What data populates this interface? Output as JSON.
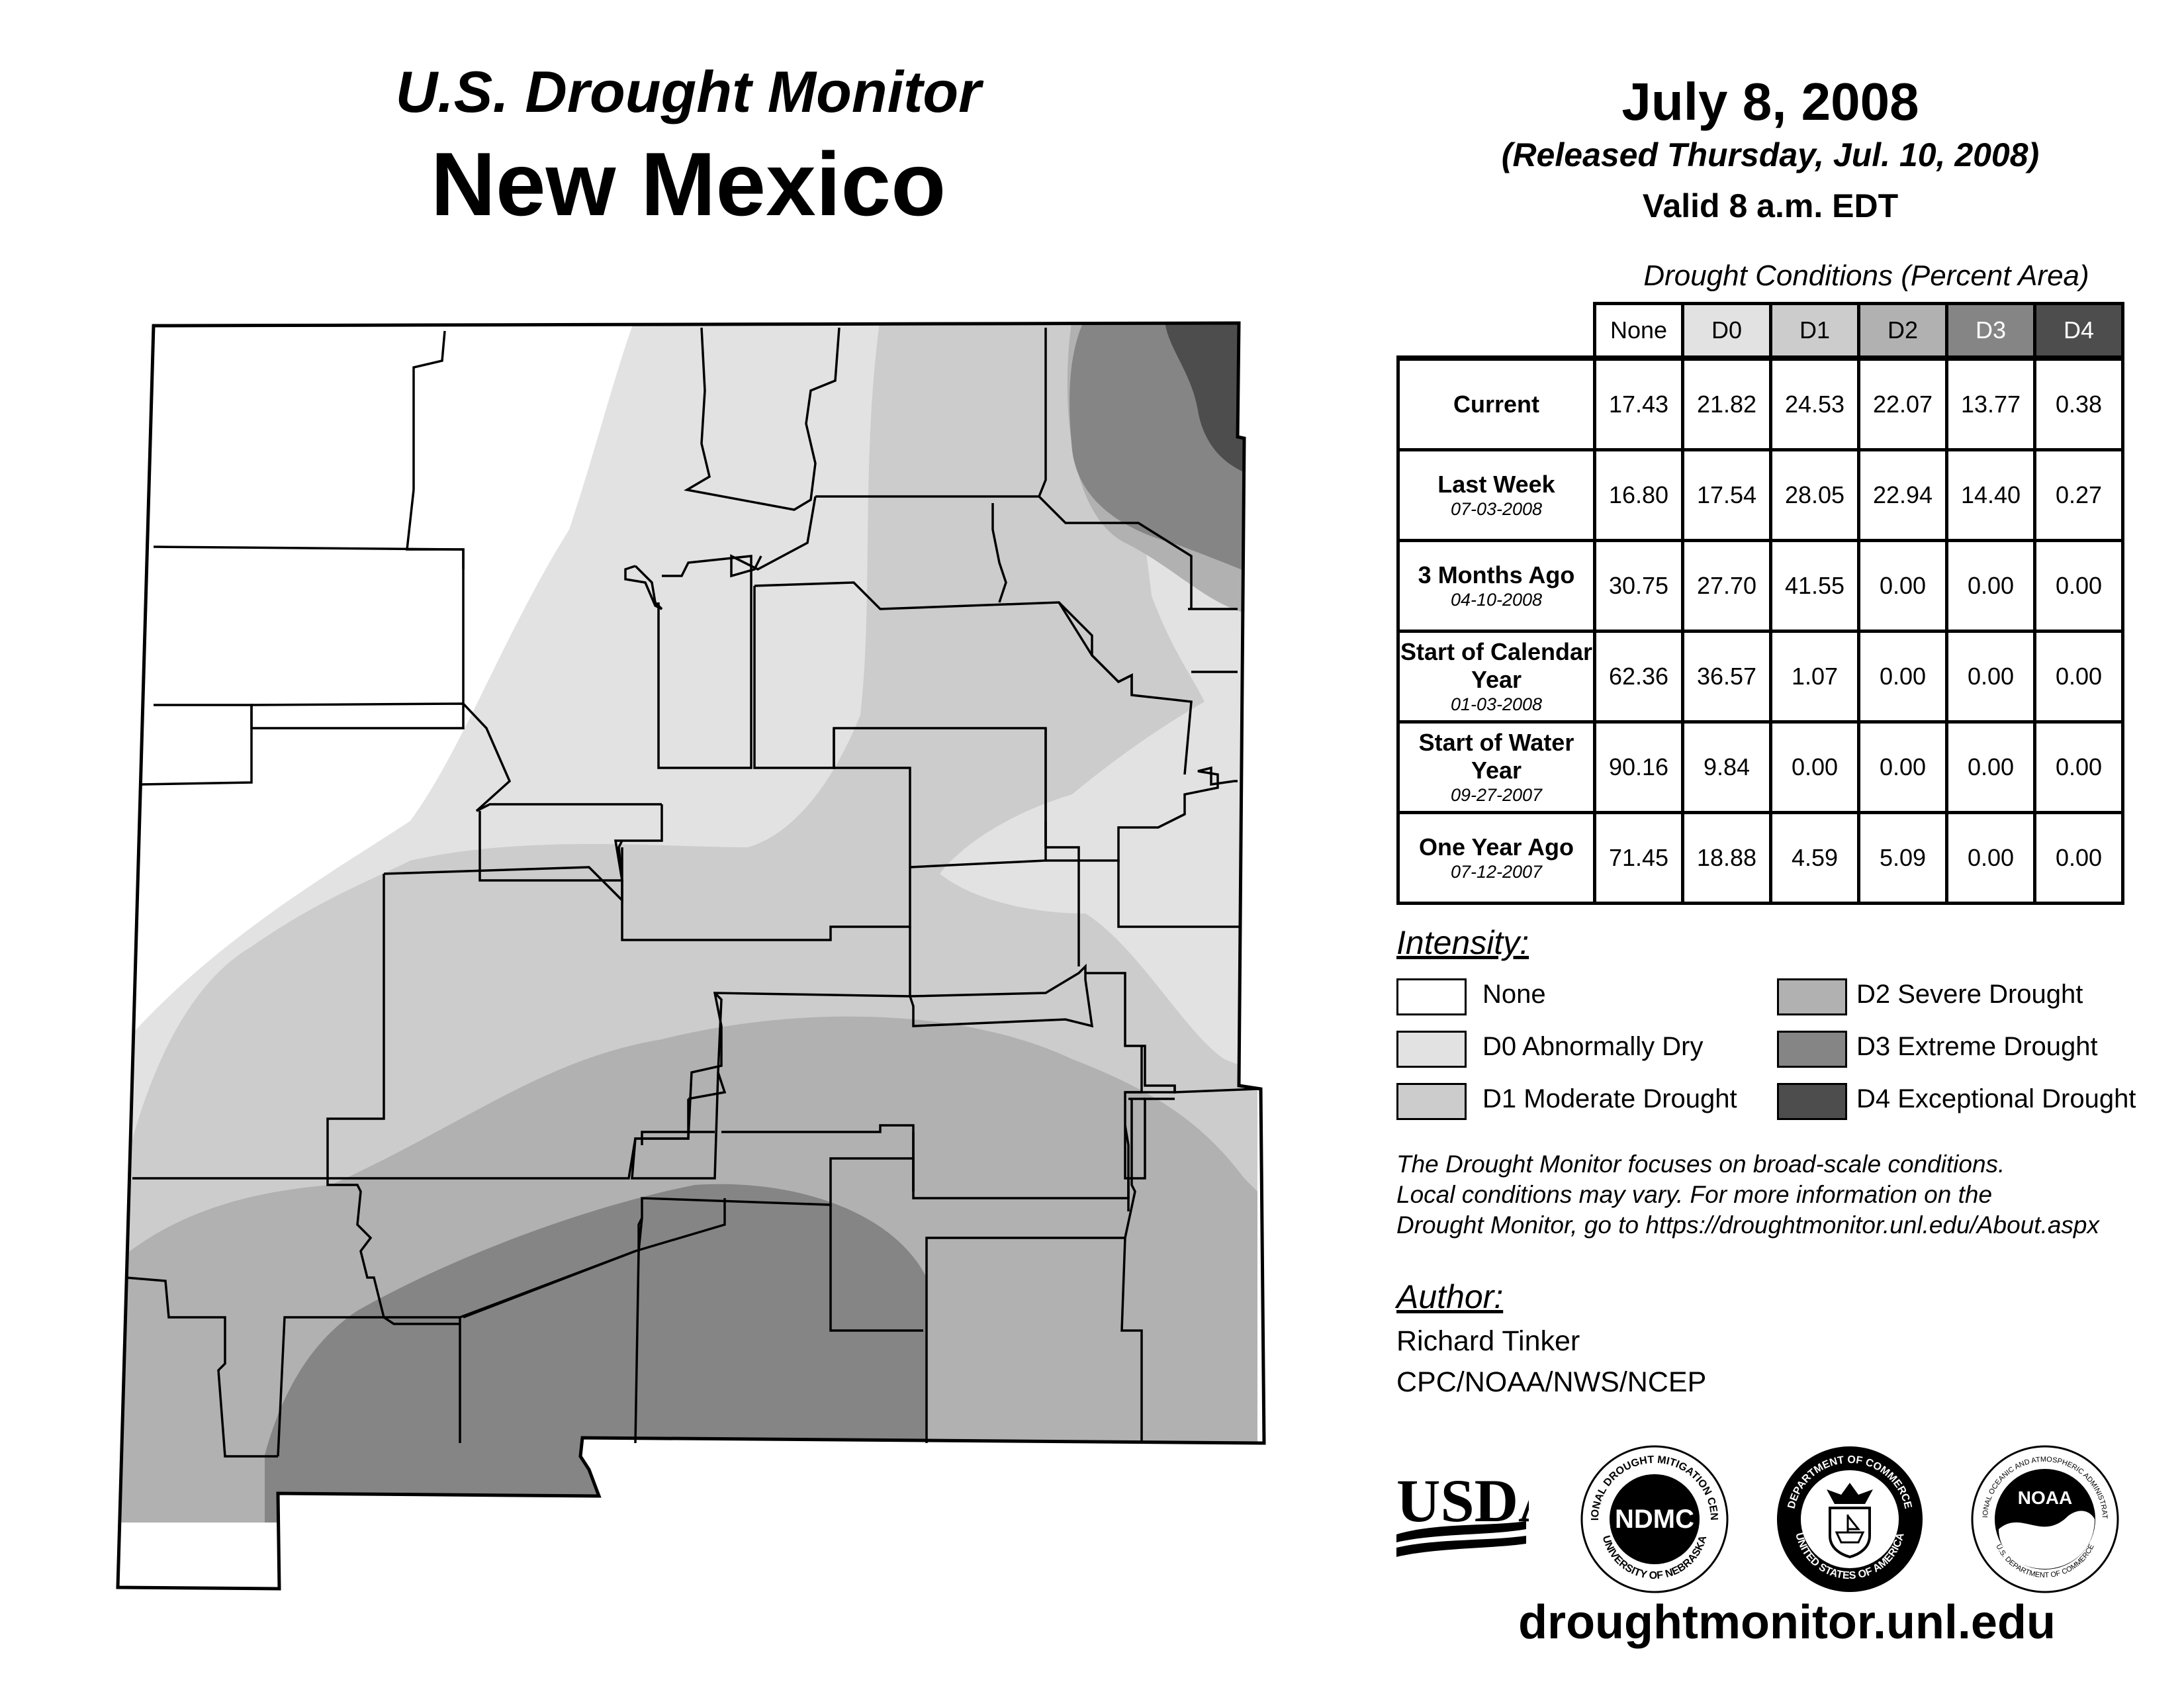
{
  "header": {
    "monitor_title": "U.S. Drought Monitor",
    "region": "New Mexico",
    "date": "July 8, 2008",
    "released": "(Released Thursday, Jul. 10, 2008)",
    "valid": "Valid 8 a.m. EDT"
  },
  "table": {
    "caption": "Drought Conditions (Percent Area)",
    "columns": [
      "None",
      "D0",
      "D1",
      "D2",
      "D3",
      "D4"
    ],
    "rows": [
      {
        "label": "Current",
        "date": "",
        "values": [
          "17.43",
          "21.82",
          "24.53",
          "22.07",
          "13.77",
          "0.38"
        ]
      },
      {
        "label": "Last Week",
        "date": "07-03-2008",
        "values": [
          "16.80",
          "17.54",
          "28.05",
          "22.94",
          "14.40",
          "0.27"
        ]
      },
      {
        "label": "3 Months Ago",
        "date": "04-10-2008",
        "values": [
          "30.75",
          "27.70",
          "41.55",
          "0.00",
          "0.00",
          "0.00"
        ]
      },
      {
        "label": "Start of Calendar Year",
        "date": "01-03-2008",
        "values": [
          "62.36",
          "36.57",
          "1.07",
          "0.00",
          "0.00",
          "0.00"
        ]
      },
      {
        "label": "Start of Water Year",
        "date": "09-27-2007",
        "values": [
          "90.16",
          "9.84",
          "0.00",
          "0.00",
          "0.00",
          "0.00"
        ]
      },
      {
        "label": "One Year Ago",
        "date": "07-12-2007",
        "values": [
          "71.45",
          "18.88",
          "4.59",
          "5.09",
          "0.00",
          "0.00"
        ]
      }
    ]
  },
  "legend": {
    "heading": "Intensity:",
    "items": [
      {
        "label": "None",
        "color": "#ffffff"
      },
      {
        "label": "D0 Abnormally Dry",
        "color": "#e2e2e2"
      },
      {
        "label": "D1 Moderate Drought",
        "color": "#cccccc"
      },
      {
        "label": "D2 Severe Drought",
        "color": "#b1b1b1"
      },
      {
        "label": "D3 Extreme Drought",
        "color": "#858585"
      },
      {
        "label": "D4 Exceptional Drought",
        "color": "#4d4d4d"
      }
    ]
  },
  "note": {
    "line1": "The Drought Monitor focuses on broad-scale conditions.",
    "line2": "Local conditions may vary. For more information on the",
    "line3": "Drought Monitor, go to https://droughtmonitor.unl.edu/About.aspx"
  },
  "author": {
    "heading": "Author:",
    "name": "Richard Tinker",
    "org": "CPC/NOAA/NWS/NCEP"
  },
  "logos": {
    "usda": "USDA",
    "ndmc": "NDMC",
    "ndmc_ring_top": "NATIONAL DROUGHT MITIGATION CENTER",
    "ndmc_ring_bottom": "UNIVERSITY OF NEBRASKA",
    "doc_ring_top": "DEPARTMENT OF COMMERCE",
    "doc_ring_bottom": "UNITED STATES OF AMERICA",
    "noaa": "NOAA",
    "noaa_ring_top": "NATIONAL OCEANIC AND ATMOSPHERIC ADMINISTRATION",
    "noaa_ring_bottom": "U.S. DEPARTMENT OF COMMERCE"
  },
  "footer_url": "droughtmonitor.unl.edu"
}
